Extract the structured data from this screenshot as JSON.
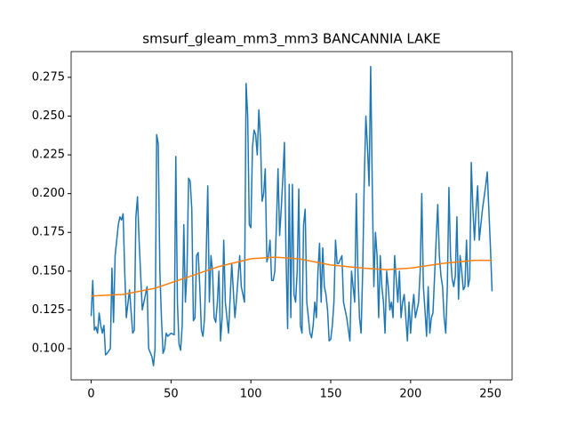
{
  "chart_data": {
    "type": "line",
    "title": "smsurf_gleam_mm3_mm3 BANCANNIA LAKE",
    "xlim": [
      -12.55,
      263.55
    ],
    "xticks": [
      0,
      50,
      100,
      150,
      200,
      250
    ],
    "ylim": [
      0.0799,
      0.2916
    ],
    "yticks": [
      {
        "value": 0.1,
        "label": "0.100"
      },
      0.125,
      {
        "value": 0.15,
        "label": "0.150"
      },
      0.175,
      {
        "value": 0.2,
        "label": "0.200"
      },
      0.225,
      {
        "value": 0.25,
        "label": "0.250"
      },
      0.275
    ],
    "series": [
      {
        "color": "#1f77b4",
        "x": [
          0,
          1,
          2,
          3,
          4,
          5,
          6,
          7,
          8,
          9,
          10,
          12,
          13,
          14,
          15,
          17,
          18,
          19,
          20,
          21,
          22,
          24,
          26,
          27,
          28,
          29,
          30,
          32,
          33,
          35,
          36,
          38,
          39,
          40,
          41,
          42,
          43,
          44,
          45,
          46,
          47,
          48,
          50,
          52,
          53,
          54,
          55,
          56,
          57,
          58,
          59,
          60,
          61,
          62,
          63,
          64,
          65,
          66,
          67,
          68,
          69,
          70,
          71,
          72,
          73,
          74,
          75,
          76,
          77,
          78,
          79,
          80,
          81,
          82,
          83,
          84,
          86,
          88,
          90,
          91,
          93,
          94,
          96,
          97,
          98,
          99,
          100,
          101,
          102,
          103,
          104,
          105,
          106,
          107,
          108,
          109,
          110,
          111,
          112,
          113,
          114,
          115,
          116,
          117,
          118,
          119,
          120,
          121,
          122,
          123,
          124,
          125,
          126,
          127,
          128,
          129,
          130,
          131,
          132,
          133,
          134,
          135,
          136,
          137,
          138,
          139,
          140,
          141,
          142,
          143,
          144,
          145,
          146,
          147,
          148,
          149,
          150,
          151,
          152,
          153,
          154,
          155,
          157,
          158,
          160,
          162,
          163,
          165,
          166,
          167,
          168,
          169,
          170,
          171,
          172,
          173,
          174,
          175,
          176,
          177,
          178,
          179,
          180,
          181,
          182,
          183,
          184,
          185,
          186,
          187,
          188,
          189,
          190,
          192,
          193,
          194,
          195,
          196,
          197,
          198,
          199,
          200,
          201,
          202,
          203,
          205,
          206,
          207,
          208,
          209,
          210,
          211,
          212,
          213,
          214,
          216,
          217,
          218,
          219,
          220,
          221,
          222,
          223,
          224,
          225,
          226,
          227,
          228,
          229,
          230,
          231,
          232,
          233,
          234,
          235,
          236,
          237,
          238,
          239,
          240,
          241,
          242,
          243,
          245,
          247,
          248,
          250,
          251
        ],
        "values": [
          0.121,
          0.144,
          0.112,
          0.114,
          0.11,
          0.123,
          0.115,
          0.11,
          0.115,
          0.096,
          0.097,
          0.1,
          0.152,
          0.117,
          0.16,
          0.18,
          0.185,
          0.183,
          0.187,
          0.15,
          0.12,
          0.138,
          0.11,
          0.112,
          0.185,
          0.198,
          0.17,
          0.125,
          0.13,
          0.14,
          0.1,
          0.095,
          0.089,
          0.1,
          0.238,
          0.232,
          0.15,
          0.12,
          0.097,
          0.1,
          0.11,
          0.108,
          0.11,
          0.109,
          0.224,
          0.13,
          0.103,
          0.099,
          0.115,
          0.18,
          0.13,
          0.15,
          0.21,
          0.208,
          0.19,
          0.118,
          0.12,
          0.16,
          0.162,
          0.14,
          0.112,
          0.108,
          0.12,
          0.159,
          0.205,
          0.13,
          0.16,
          0.15,
          0.12,
          0.117,
          0.13,
          0.15,
          0.105,
          0.12,
          0.17,
          0.13,
          0.11,
          0.155,
          0.12,
          0.132,
          0.16,
          0.14,
          0.13,
          0.271,
          0.25,
          0.18,
          0.178,
          0.23,
          0.241,
          0.238,
          0.225,
          0.254,
          0.235,
          0.195,
          0.2,
          0.216,
          0.156,
          0.16,
          0.17,
          0.144,
          0.144,
          0.15,
          0.18,
          0.216,
          0.173,
          0.19,
          0.21,
          0.233,
          0.16,
          0.113,
          0.206,
          0.12,
          0.206,
          0.135,
          0.13,
          0.15,
          0.203,
          0.115,
          0.11,
          0.18,
          0.19,
          0.13,
          0.12,
          0.11,
          0.107,
          0.115,
          0.13,
          0.12,
          0.15,
          0.168,
          0.13,
          0.165,
          0.14,
          0.135,
          0.125,
          0.105,
          0.106,
          0.115,
          0.13,
          0.17,
          0.155,
          0.155,
          0.16,
          0.13,
          0.12,
          0.105,
          0.15,
          0.13,
          0.2,
          0.15,
          0.12,
          0.11,
          0.15,
          0.21,
          0.25,
          0.23,
          0.205,
          0.282,
          0.205,
          0.14,
          0.175,
          0.16,
          0.12,
          0.16,
          0.14,
          0.13,
          0.11,
          0.15,
          0.14,
          0.125,
          0.13,
          0.12,
          0.16,
          0.13,
          0.15,
          0.12,
          0.13,
          0.135,
          0.12,
          0.105,
          0.13,
          0.11,
          0.125,
          0.135,
          0.12,
          0.13,
          0.15,
          0.2,
          0.14,
          0.125,
          0.108,
          0.14,
          0.11,
          0.12,
          0.123,
          0.17,
          0.193,
          0.16,
          0.147,
          0.14,
          0.12,
          0.11,
          0.14,
          0.204,
          0.16,
          0.145,
          0.14,
          0.147,
          0.185,
          0.132,
          0.16,
          0.15,
          0.138,
          0.14,
          0.17,
          0.14,
          0.145,
          0.22,
          0.19,
          0.17,
          0.19,
          0.205,
          0.17,
          0.19,
          0.205,
          0.214,
          0.165,
          0.137
        ]
      },
      {
        "color": "#ff7f0e",
        "x": [
          0,
          20,
          40,
          60,
          80,
          100,
          115,
          130,
          150,
          170,
          185,
          200,
          220,
          240,
          251
        ],
        "values": [
          0.134,
          0.135,
          0.139,
          0.146,
          0.153,
          0.158,
          0.159,
          0.158,
          0.154,
          0.152,
          0.151,
          0.152,
          0.155,
          0.157,
          0.157
        ]
      }
    ]
  }
}
